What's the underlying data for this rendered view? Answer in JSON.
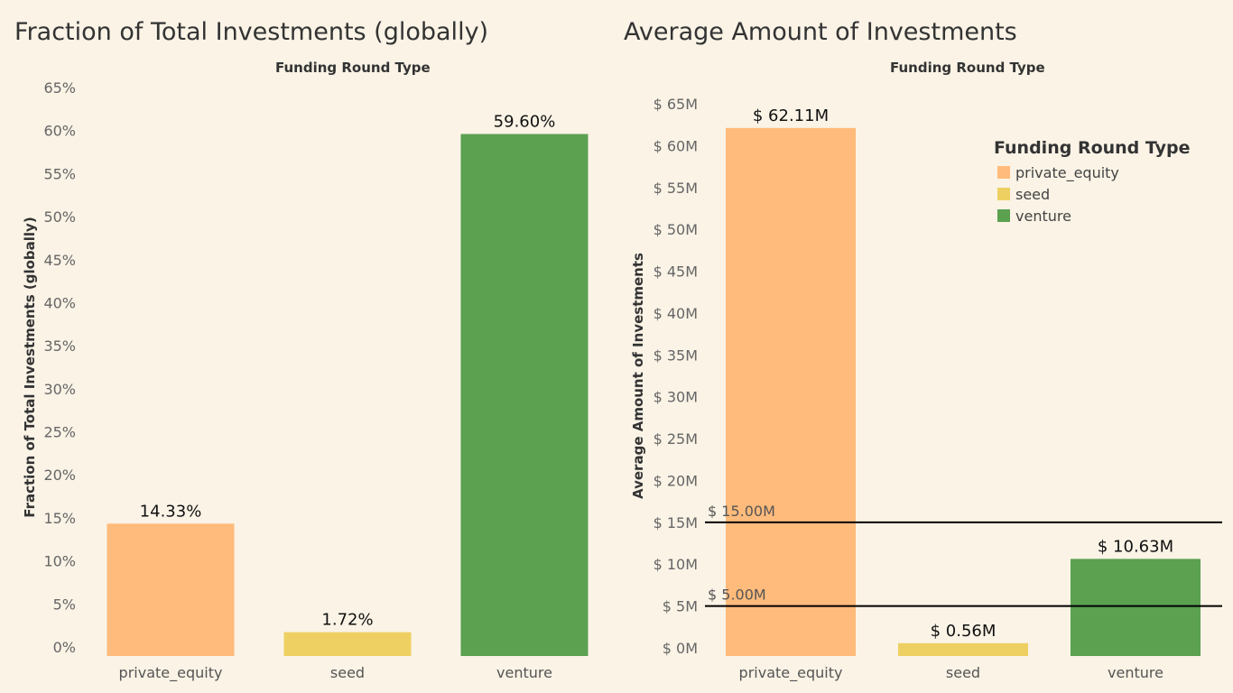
{
  "colors": {
    "private_equity": "#ffbb7b",
    "seed": "#eed062",
    "venture": "#5ba150",
    "background": "#faf3e6",
    "reference_line": "#000000"
  },
  "left": {
    "title": "Fraction of Total Investments (globally)",
    "subheader": "Funding Round Type"
  },
  "right": {
    "title": "Average Amount of Investments",
    "subheader": "Funding Round Type"
  },
  "legend": {
    "title": "Funding Round Type",
    "items": [
      "private_equity",
      "seed",
      "venture"
    ]
  },
  "chart_data": [
    {
      "type": "bar",
      "title": "Fraction of Total Investments (globally)",
      "xlabel": "Funding Round Type",
      "ylabel": "Fraction of Total Investments (globally)",
      "categories": [
        "private_equity",
        "seed",
        "venture"
      ],
      "values": [
        14.33,
        1.72,
        59.6
      ],
      "data_labels": [
        "14.33%",
        "1.72%",
        "59.60%"
      ],
      "ylim": [
        0,
        65
      ],
      "yticks": [
        0,
        5,
        10,
        15,
        20,
        25,
        30,
        35,
        40,
        45,
        50,
        55,
        60,
        65
      ],
      "ytick_labels": [
        "0%",
        "5%",
        "10%",
        "15%",
        "20%",
        "25%",
        "30%",
        "35%",
        "40%",
        "45%",
        "50%",
        "55%",
        "60%",
        "65%"
      ],
      "grid": false
    },
    {
      "type": "bar",
      "title": "Average Amount of Investments",
      "xlabel": "Funding Round Type",
      "ylabel": "Average Amount of Investments",
      "categories": [
        "private_equity",
        "seed",
        "venture"
      ],
      "values": [
        62.11,
        0.56,
        10.63
      ],
      "data_labels": [
        "$ 62.11M",
        "$ 0.56M",
        "$ 10.63M"
      ],
      "ylim": [
        0,
        65
      ],
      "yticks": [
        0,
        5,
        10,
        15,
        20,
        25,
        30,
        35,
        40,
        45,
        50,
        55,
        60,
        65
      ],
      "ytick_labels": [
        "$ 0M",
        "$ 5M",
        "$ 10M",
        "$ 15M",
        "$ 20M",
        "$ 25M",
        "$ 30M",
        "$ 35M",
        "$ 40M",
        "$ 45M",
        "$ 50M",
        "$ 55M",
        "$ 60M",
        "$ 65M"
      ],
      "reference_lines": [
        {
          "value": 15,
          "label": "$ 15.00M"
        },
        {
          "value": 5,
          "label": "$ 5.00M"
        }
      ],
      "legend": "top-right",
      "grid": false
    }
  ]
}
